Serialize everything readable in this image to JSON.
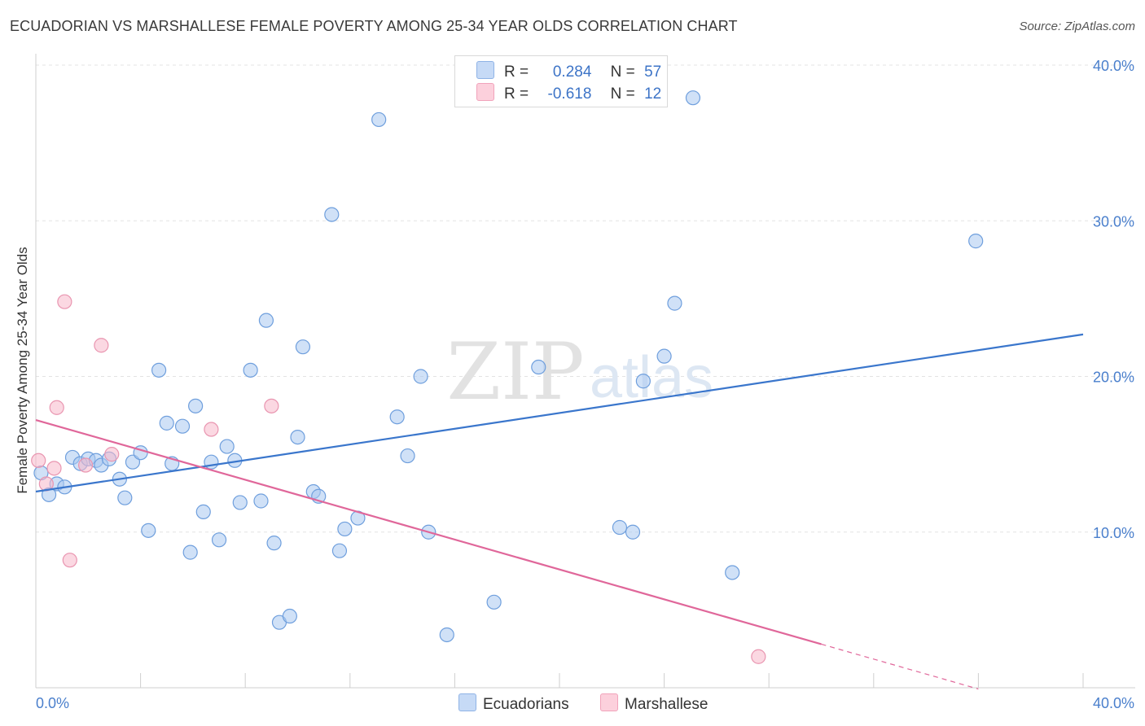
{
  "header": {
    "title": "ECUADORIAN VS MARSHALLESE FEMALE POVERTY AMONG 25-34 YEAR OLDS CORRELATION CHART",
    "source": "Source: ZipAtlas.com"
  },
  "legend": {
    "rows": [
      {
        "r_label": "R =",
        "r_value": "0.284",
        "n_label": "N =",
        "n_value": "57",
        "color": "#a9c8f0"
      },
      {
        "r_label": "R =",
        "r_value": "-0.618",
        "n_label": "N =",
        "n_value": "12",
        "color": "#f7b8cb"
      }
    ]
  },
  "watermark": {
    "zip": "ZIP",
    "atlas": "atlas"
  },
  "chart_data": {
    "type": "scatter",
    "ylabel": "Female Poverty Among 25-34 Year Olds",
    "xlim": [
      0,
      40
    ],
    "ylim": [
      0,
      40
    ],
    "x_tick_labels": [
      "0.0%",
      "40.0%"
    ],
    "y_ticks": [
      10,
      20,
      30,
      40
    ],
    "y_tick_labels": [
      "10.0%",
      "20.0%",
      "30.0%",
      "40.0%"
    ],
    "grid": true,
    "legend_position": "top-center",
    "colors": {
      "ecuadorians": "#a9c8f0",
      "ecuadorians_line": "#3a76cc",
      "marshallese": "#f7b8cb",
      "marshallese_line": "#e0679a"
    },
    "series": [
      {
        "name": "Ecuadorians",
        "points": [
          [
            0.2,
            13.8
          ],
          [
            0.5,
            12.4
          ],
          [
            0.8,
            13.1
          ],
          [
            1.1,
            12.9
          ],
          [
            1.4,
            14.8
          ],
          [
            1.7,
            14.4
          ],
          [
            2.0,
            14.7
          ],
          [
            2.3,
            14.6
          ],
          [
            2.5,
            14.3
          ],
          [
            2.8,
            14.7
          ],
          [
            3.2,
            13.4
          ],
          [
            3.4,
            12.2
          ],
          [
            3.7,
            14.5
          ],
          [
            4.0,
            15.1
          ],
          [
            4.3,
            10.1
          ],
          [
            4.7,
            20.4
          ],
          [
            5.0,
            17.0
          ],
          [
            5.2,
            14.4
          ],
          [
            5.6,
            16.8
          ],
          [
            5.9,
            8.7
          ],
          [
            6.1,
            18.1
          ],
          [
            6.4,
            11.3
          ],
          [
            6.7,
            14.5
          ],
          [
            7.0,
            9.5
          ],
          [
            7.3,
            15.5
          ],
          [
            7.6,
            14.6
          ],
          [
            7.8,
            11.9
          ],
          [
            8.2,
            20.4
          ],
          [
            8.6,
            12.0
          ],
          [
            8.8,
            23.6
          ],
          [
            9.1,
            9.3
          ],
          [
            9.3,
            4.2
          ],
          [
            9.7,
            4.6
          ],
          [
            10.0,
            16.1
          ],
          [
            10.2,
            21.9
          ],
          [
            10.6,
            12.6
          ],
          [
            10.8,
            12.3
          ],
          [
            11.3,
            30.4
          ],
          [
            11.6,
            8.8
          ],
          [
            11.8,
            10.2
          ],
          [
            12.3,
            10.9
          ],
          [
            13.1,
            36.5
          ],
          [
            13.8,
            17.4
          ],
          [
            14.2,
            14.9
          ],
          [
            14.7,
            20.0
          ],
          [
            15.0,
            10.0
          ],
          [
            15.7,
            3.4
          ],
          [
            17.5,
            5.5
          ],
          [
            19.2,
            20.6
          ],
          [
            22.3,
            10.3
          ],
          [
            22.8,
            10.0
          ],
          [
            23.2,
            19.7
          ],
          [
            24.0,
            21.3
          ],
          [
            24.4,
            24.7
          ],
          [
            25.1,
            37.9
          ],
          [
            26.6,
            7.4
          ],
          [
            35.9,
            28.7
          ]
        ],
        "trend": {
          "x": [
            0,
            40
          ],
          "y": [
            12.6,
            22.7
          ]
        }
      },
      {
        "name": "Marshallese",
        "points": [
          [
            0.1,
            14.6
          ],
          [
            0.4,
            13.1
          ],
          [
            0.7,
            14.1
          ],
          [
            0.8,
            18.0
          ],
          [
            1.1,
            24.8
          ],
          [
            1.3,
            8.2
          ],
          [
            1.9,
            14.3
          ],
          [
            2.5,
            22.0
          ],
          [
            2.9,
            15.0
          ],
          [
            6.7,
            16.6
          ],
          [
            9.0,
            18.1
          ],
          [
            27.6,
            2.0
          ]
        ],
        "trend": {
          "x_solid": [
            0,
            30.0
          ],
          "x_dashed": [
            30.0,
            36.0
          ],
          "intercept": 17.2,
          "slope": -0.48
        }
      }
    ]
  }
}
